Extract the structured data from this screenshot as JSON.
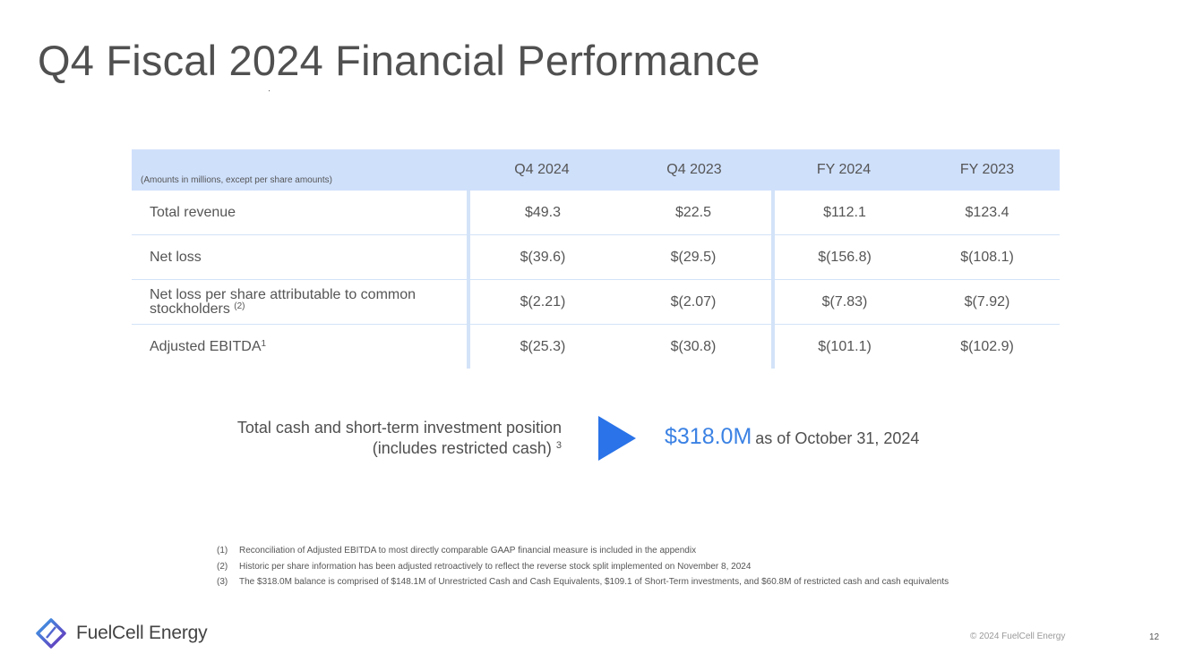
{
  "title": "Q4 Fiscal 2024 Financial Performance",
  "table": {
    "units_note": "(Amounts in millions, except per share amounts)",
    "columns": [
      "Q4 2024",
      "Q4 2023",
      "FY 2024",
      "FY 2023"
    ],
    "rows": [
      {
        "label": "Total revenue",
        "sup": "",
        "values": [
          "$49.3",
          "$22.5",
          "$112.1",
          "$123.4"
        ]
      },
      {
        "label": "Net loss",
        "sup": "",
        "values": [
          "$(39.6)",
          "$(29.5)",
          "$(156.8)",
          "$(108.1)"
        ]
      },
      {
        "label": "Net loss per share attributable to common stockholders",
        "sup": "(2)",
        "values": [
          "$(2.21)",
          "$(2.07)",
          "$(7.83)",
          "$(7.92)"
        ]
      },
      {
        "label": "Adjusted EBITDA",
        "sup": "1",
        "values": [
          "$(25.3)",
          "$(30.8)",
          "$(101.1)",
          "$(102.9)"
        ]
      }
    ]
  },
  "cash": {
    "label_line1": "Total cash and short-term investment position",
    "label_line2": "(includes restricted cash)",
    "label_sup": "3",
    "amount": "$318.0M",
    "as_of": "as of October 31, 2024",
    "arrow_color": "#2a73e8",
    "amount_color": "#3b82e4"
  },
  "footnotes": [
    {
      "num": "(1)",
      "text": "Reconciliation of Adjusted EBITDA to most directly comparable GAAP financial measure is included in the appendix"
    },
    {
      "num": "(2)",
      "text": "Historic per share information has been adjusted retroactively to reflect the reverse stock split implemented on November 8, 2024"
    },
    {
      "num": "(3)",
      "text": "The $318.0M balance is comprised of $148.1M of Unrestricted Cash and Cash Equivalents, $109.1 of Short-Term investments, and $60.8M of restricted cash and cash equivalents"
    }
  ],
  "footer": {
    "logo_text": "FuelCell Energy",
    "logo_icon": "fuelcell-logo-icon",
    "copyright": "© 2024 FuelCell Energy",
    "page_number": "12"
  },
  "colors": {
    "header_fill": "#cfe0fb",
    "divider": "#d3e3f8"
  }
}
